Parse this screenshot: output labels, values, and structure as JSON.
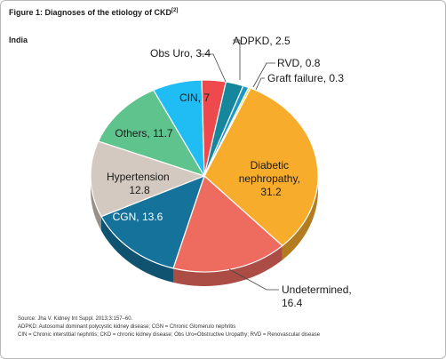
{
  "figure": {
    "title": "Figure 1: Diagnoses of the etiology of CKD",
    "title_ref": "[2]",
    "subtitle": "India"
  },
  "chart_data": {
    "type": "pie",
    "title": "Figure 1: Diagnoses of the etiology of CKD",
    "subtitle": "India",
    "slices": [
      {
        "label": "Diabetic nephropathy",
        "value": 31.2,
        "color": "#f8ac2c"
      },
      {
        "label": "Undetermined",
        "value": 16.4,
        "color": "#ee6b5f"
      },
      {
        "label": "CGN",
        "value": 13.6,
        "color": "#15739b"
      },
      {
        "label": "Hypertension",
        "value": 12.8,
        "color": "#d3c9c0"
      },
      {
        "label": "Others",
        "value": 11.7,
        "color": "#5ec38c"
      },
      {
        "label": "CIN",
        "value": 7,
        "color": "#1fbdf3"
      },
      {
        "label": "Obs Uro",
        "value": 3.4,
        "color": "#ee4a4d"
      },
      {
        "label": "ADPKD",
        "value": 2.5,
        "color": "#15869c"
      },
      {
        "label": "RVD",
        "value": 0.8,
        "color": "#1f97c4"
      },
      {
        "label": "Graft failure",
        "value": 0.3,
        "color": "#f1e04a"
      }
    ]
  },
  "labels": {
    "diabetic": [
      "Diabetic",
      "nephropathy,",
      "31.2"
    ],
    "undetermined": [
      "Undetermined,",
      "16.4"
    ],
    "cgn": "CGN, 13.6",
    "hypertension": [
      "Hypertension",
      "12.8"
    ],
    "others": "Others, 11.7",
    "cin": "CIN, 7",
    "obsuro": "Obs Uro, 3.4",
    "adpkd": "ADPKD, 2.5",
    "rvd": "RVD, 0.8",
    "graft": "Graft failure, 0.3"
  },
  "footer": {
    "source": "Source: Jha V. Kidney Int Suppl. 2013;3:157–60.",
    "abbrev1": "ADPKD: Autosomal dominant polycystic kidney disease; CGN = Chronic Glomerulo nephritis",
    "abbrev2": "CIN = Chronic interstitial nephritis; CKD = chronic kidney disease; Obs Uro=Obstructive Uropathy; RVD = Renovascular disease"
  }
}
